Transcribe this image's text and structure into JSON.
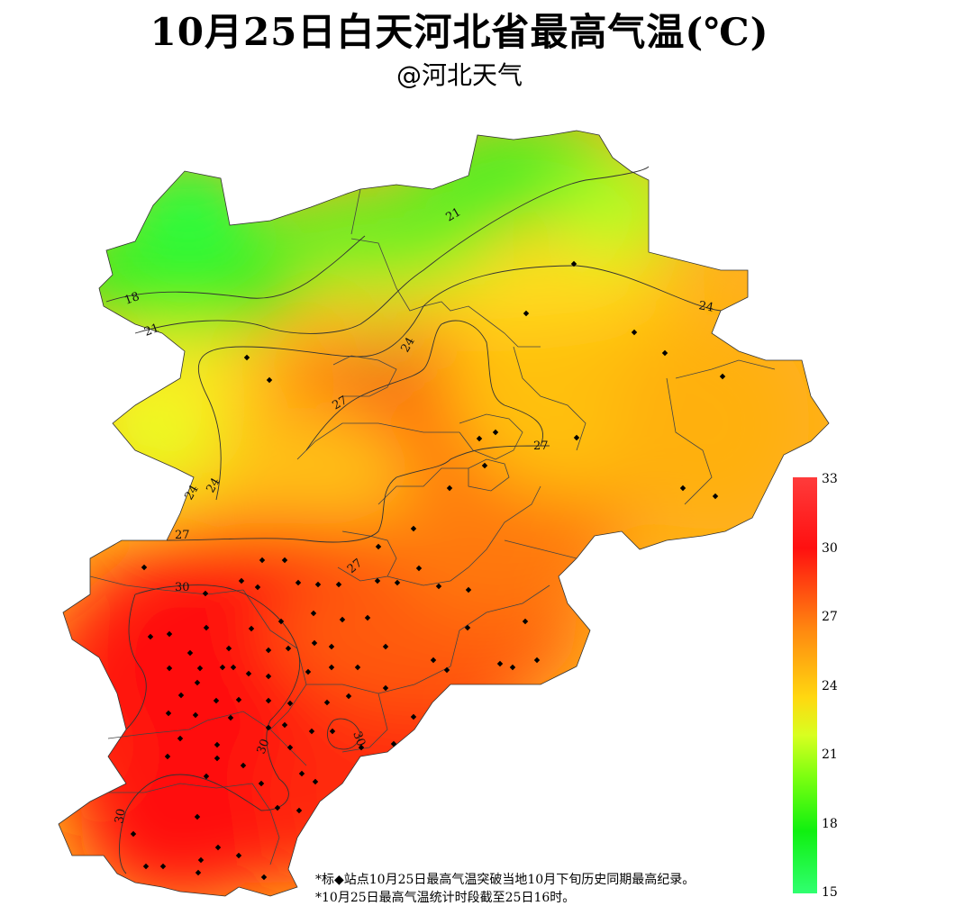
{
  "title": "10月25日白天河北省最高气温(℃)",
  "subtitle": "@河北天气",
  "legend": {
    "ticks": [
      "33",
      "30",
      "27",
      "24",
      "21",
      "18",
      "15"
    ],
    "colors": [
      "#ff3b3b",
      "#ff1010",
      "#ff8a10",
      "#ffd810",
      "#7cff10",
      "#10f010",
      "#30ff70"
    ]
  },
  "contour_labels": [
    "18",
    "21",
    "21",
    "24",
    "24",
    "24",
    "24",
    "27",
    "27",
    "27",
    "27",
    "30",
    "30",
    "30",
    "30"
  ],
  "notes": [
    "*标◆站点10月25日最高气温突破当地10月下旬历史同期最高纪录。",
    "*10月25日最高气温统计时段截至25日16时。"
  ]
}
